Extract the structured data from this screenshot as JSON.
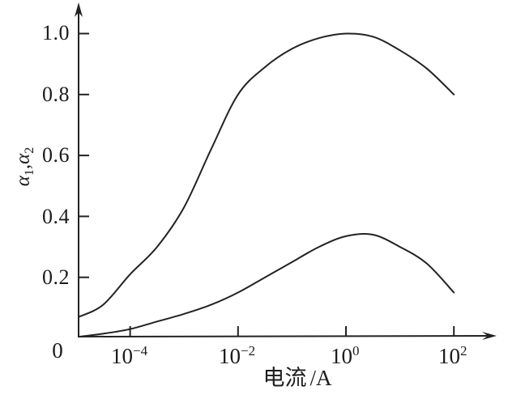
{
  "figure": {
    "background": "#ffffff",
    "line_color": "#222222"
  },
  "chart_data": {
    "type": "line",
    "xlabel": "电流/A",
    "xlabel_parts": {
      "cn": "电流",
      "unit": "/A"
    },
    "ylabel": "α1,α2",
    "ylabel_parts": {
      "a1": "α",
      "s1": "1",
      "comma": ",",
      "a2": "α",
      "s2": "2"
    },
    "x_scale": "log10",
    "x_origin_label": "0",
    "x_range_logI": [
      -4.95,
      2
    ],
    "ylim": [
      0,
      1.08
    ],
    "grid": false,
    "legend": "none",
    "x_ticks": [
      {
        "base": "10",
        "exp": "−4",
        "logI": -4
      },
      {
        "base": "10",
        "exp": "−2",
        "logI": -2
      },
      {
        "base": "10",
        "exp": "0",
        "logI": 0
      },
      {
        "base": "10",
        "exp": "2",
        "logI": 2
      }
    ],
    "y_ticks": [
      {
        "label": "1.0",
        "value": 1.0
      },
      {
        "label": "0.8",
        "value": 0.8
      },
      {
        "label": "0.6",
        "value": 0.6
      },
      {
        "label": "0.4",
        "value": 0.4
      },
      {
        "label": "0.2",
        "value": 0.2
      }
    ],
    "series": [
      {
        "name": "α1",
        "points": [
          [
            -4.95,
            0.07
          ],
          [
            -4.5,
            0.11
          ],
          [
            -4,
            0.21
          ],
          [
            -3.5,
            0.3
          ],
          [
            -3,
            0.43
          ],
          [
            -2.5,
            0.62
          ],
          [
            -2,
            0.8
          ],
          [
            -1.5,
            0.89
          ],
          [
            -1,
            0.95
          ],
          [
            -0.5,
            0.985
          ],
          [
            0,
            1.0
          ],
          [
            0.5,
            0.99
          ],
          [
            1,
            0.945
          ],
          [
            1.5,
            0.885
          ],
          [
            2,
            0.8
          ]
        ]
      },
      {
        "name": "α2",
        "points": [
          [
            -4.95,
            0.005
          ],
          [
            -4.5,
            0.015
          ],
          [
            -4,
            0.03
          ],
          [
            -3.5,
            0.055
          ],
          [
            -3,
            0.08
          ],
          [
            -2.5,
            0.11
          ],
          [
            -2,
            0.15
          ],
          [
            -1.5,
            0.2
          ],
          [
            -1,
            0.25
          ],
          [
            -0.5,
            0.3
          ],
          [
            0,
            0.335
          ],
          [
            0.5,
            0.34
          ],
          [
            1,
            0.3
          ],
          [
            1.5,
            0.245
          ],
          [
            2,
            0.15
          ]
        ]
      }
    ]
  }
}
